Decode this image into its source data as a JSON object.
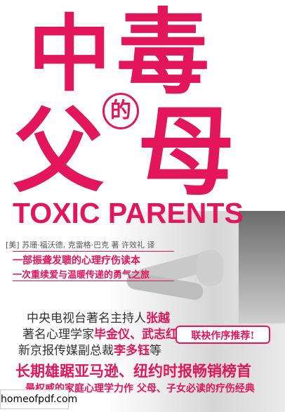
{
  "cover": {
    "title_chars": [
      "中",
      "毒",
      "的",
      "父",
      "母"
    ],
    "english_title": "TOXIC PARENTS",
    "authors": "[美] 苏珊·福沃德, 克雷格·巴克 著 许效礼 译",
    "taglines": [
      "一部振聋发聩的心理疗伤读本",
      "一次重续爱与温暖传递的勇气之旅"
    ],
    "recommenders": [
      {
        "prefix": "中央电视台著名主持人",
        "name": "张越",
        "suffix": ""
      },
      {
        "prefix": "著名心理学家",
        "name": "毕金仪、武志红",
        "suffix": ""
      },
      {
        "prefix": "新京报传媒副总裁",
        "name": "李多钰",
        "suffix": "等"
      }
    ],
    "badge": "联袂作序推荐!",
    "headline": "长期雄踞亚马逊、纽约时报畅销榜首",
    "subline": "最权威的家庭心理学力作 父母、子女必读的疗伤经典",
    "watermark": "homeofpdf.com",
    "accent_color": "#e3165b"
  }
}
